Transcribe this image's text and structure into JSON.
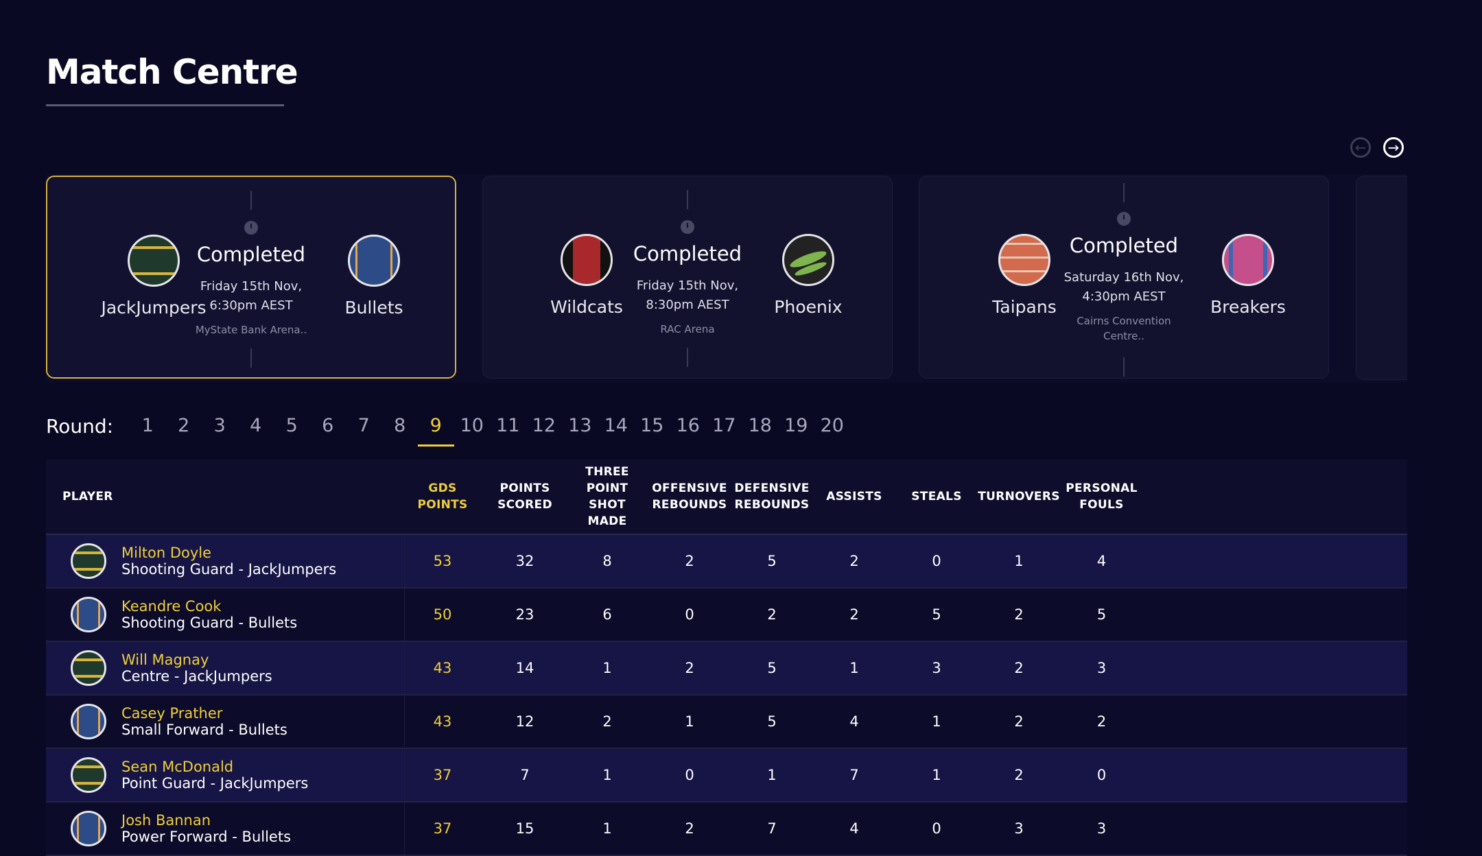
{
  "page": {
    "title": "Match Centre"
  },
  "carousel": {
    "matches": [
      {
        "home": "JackJumpers",
        "away": "Bullets",
        "status": "Completed",
        "date": "Friday 15th Nov,",
        "time": "6:30pm AEST",
        "venue": "MyState Bank Arena..",
        "venue2": ""
      },
      {
        "home": "Wildcats",
        "away": "Phoenix",
        "status": "Completed",
        "date": "Friday 15th Nov,",
        "time": "8:30pm AEST",
        "venue": "RAC Arena",
        "venue2": ""
      },
      {
        "home": "Taipans",
        "away": "Breakers",
        "status": "Completed",
        "date": "Saturday 16th Nov,",
        "time": "4:30pm AEST",
        "venue": "Cairns Convention",
        "venue2": "Centre.."
      }
    ]
  },
  "rounds": {
    "label": "Round:",
    "items": [
      "1",
      "2",
      "3",
      "4",
      "5",
      "6",
      "7",
      "8",
      "9",
      "10",
      "11",
      "12",
      "13",
      "14",
      "15",
      "16",
      "17",
      "18",
      "19",
      "20"
    ],
    "active": "9"
  },
  "table": {
    "headers": [
      "PLAYER",
      "GDS POINTS",
      "POINTS SCORED",
      "THREE POINT SHOT MADE",
      "OFFENSIVE REBOUNDS",
      "DEFENSIVE REBOUNDS",
      "ASSISTS",
      "STEALS",
      "TURNOVERS",
      "PERSONAL FOULS"
    ],
    "header_lines": [
      [
        "PLAYER"
      ],
      [
        "GDS POINTS"
      ],
      [
        "POINTS",
        "SCORED"
      ],
      [
        "THREE",
        "POINT SHOT",
        "MADE"
      ],
      [
        "OFFENSIVE",
        "REBOUNDS"
      ],
      [
        "DEFENSIVE",
        "REBOUNDS"
      ],
      [
        "ASSISTS"
      ],
      [
        "STEALS"
      ],
      [
        "TURNOVERS"
      ],
      [
        "PERSONAL",
        "FOULS"
      ]
    ],
    "rows": [
      {
        "name": "Milton Doyle",
        "role": "Shooting Guard - JackJumpers",
        "team": "jackjumpers",
        "gds": "53",
        "pts": "32",
        "three": "8",
        "oreb": "2",
        "dreb": "5",
        "ast": "2",
        "stl": "0",
        "tov": "1",
        "pf": "4"
      },
      {
        "name": "Keandre Cook",
        "role": "Shooting Guard - Bullets",
        "team": "bullets",
        "gds": "50",
        "pts": "23",
        "three": "6",
        "oreb": "0",
        "dreb": "2",
        "ast": "2",
        "stl": "5",
        "tov": "2",
        "pf": "5"
      },
      {
        "name": "Will Magnay",
        "role": "Centre - JackJumpers",
        "team": "jackjumpers",
        "gds": "43",
        "pts": "14",
        "three": "1",
        "oreb": "2",
        "dreb": "5",
        "ast": "1",
        "stl": "3",
        "tov": "2",
        "pf": "3"
      },
      {
        "name": "Casey Prather",
        "role": "Small Forward - Bullets",
        "team": "bullets",
        "gds": "43",
        "pts": "12",
        "three": "2",
        "oreb": "1",
        "dreb": "5",
        "ast": "4",
        "stl": "1",
        "tov": "2",
        "pf": "2"
      },
      {
        "name": "Sean McDonald",
        "role": "Point Guard - JackJumpers",
        "team": "jackjumpers",
        "gds": "37",
        "pts": "7",
        "three": "1",
        "oreb": "0",
        "dreb": "1",
        "ast": "7",
        "stl": "1",
        "tov": "2",
        "pf": "0"
      },
      {
        "name": "Josh Bannan",
        "role": "Power Forward - Bullets",
        "team": "bullets",
        "gds": "37",
        "pts": "15",
        "three": "1",
        "oreb": "2",
        "dreb": "7",
        "ast": "4",
        "stl": "0",
        "tov": "3",
        "pf": "3"
      }
    ]
  },
  "icons": {
    "prev": "arrow-left-icon",
    "next": "arrow-right-icon",
    "clock": "clock-icon"
  }
}
